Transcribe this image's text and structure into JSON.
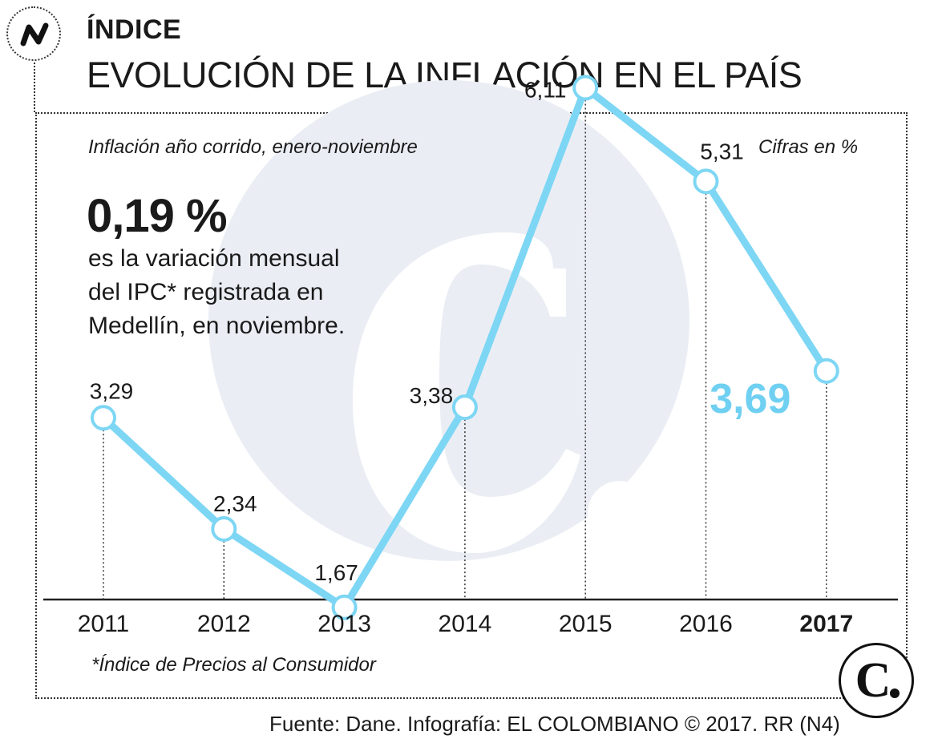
{
  "header": {
    "kicker": "ÍNDICE",
    "title": "EVOLUCIÓN DE LA INFLACIÓN EN EL PAÍS",
    "badge_icon": "trend-line-icon"
  },
  "subtitle": "Inflación año corrido, enero-noviembre",
  "units": "Cifras en %",
  "highlight": {
    "value": "0,19 %",
    "lines": [
      "es la variación mensual",
      "del IPC* registrada en",
      "Medellín, en noviembre."
    ]
  },
  "footnote": "*Índice de Precios al Consumidor",
  "source": "Fuente: Dane. Infografía: EL COLOMBIANO © 2017. RR (N4)",
  "colors": {
    "line": "#7dd6f4",
    "highlight": "#6fd0f2",
    "watermark": "#eaeef4",
    "text": "#1a1a1a"
  },
  "chart_data": {
    "type": "line",
    "categories": [
      "2011",
      "2012",
      "2013",
      "2014",
      "2015",
      "2016",
      "2017"
    ],
    "values": [
      3.29,
      2.34,
      1.67,
      3.38,
      6.11,
      5.31,
      3.69
    ],
    "labels": [
      "3,29",
      "2,34",
      "1,67",
      "3,38",
      "6,11",
      "5,31",
      "3,69"
    ],
    "highlight_category": "2017",
    "xlabel": "",
    "ylabel": "",
    "grid": false,
    "legend": "none"
  }
}
